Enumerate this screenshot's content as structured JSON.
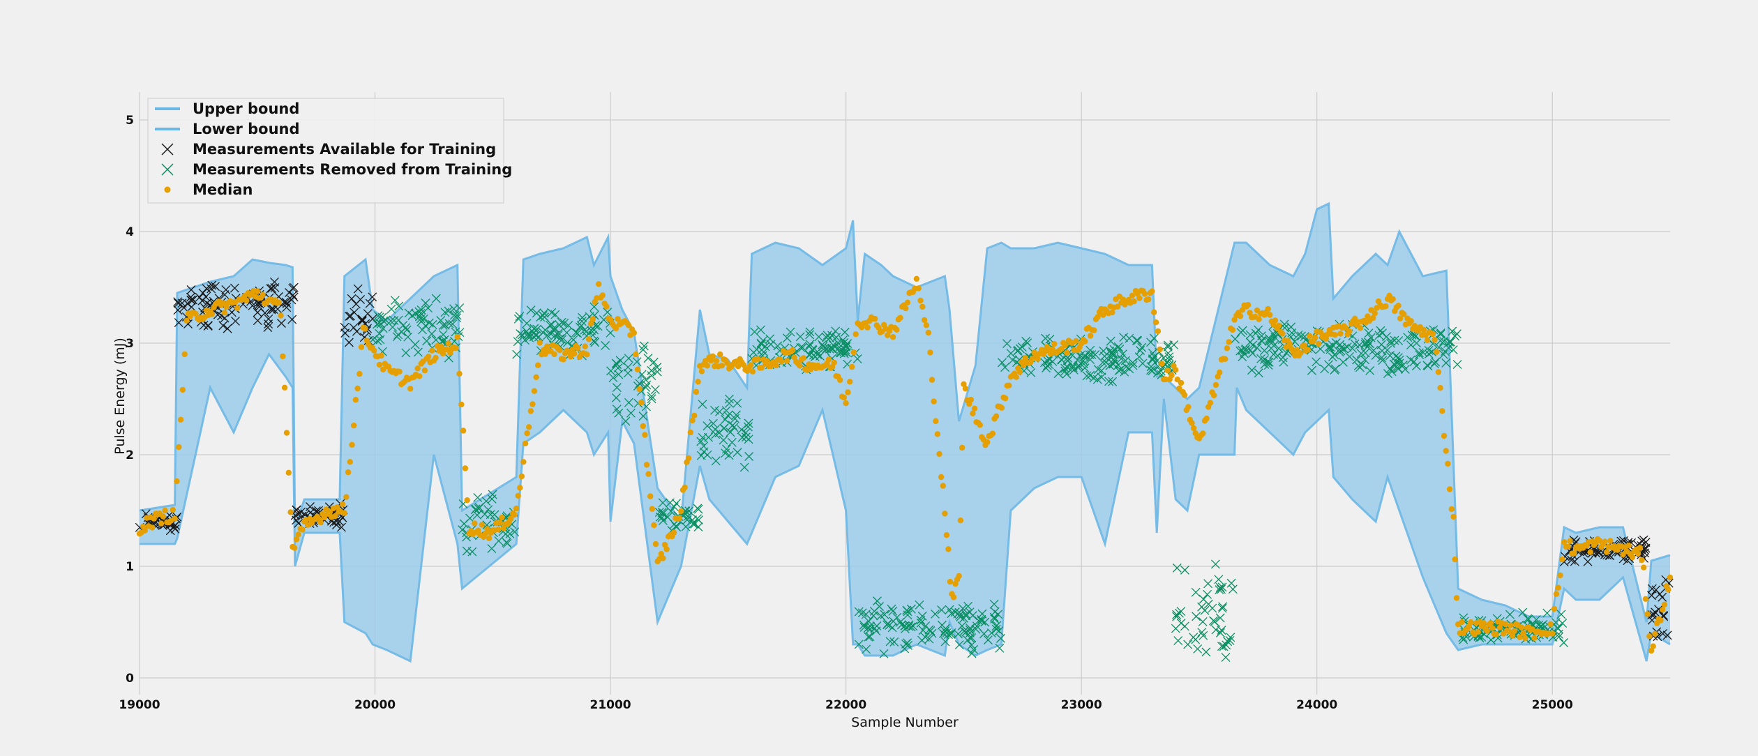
{
  "chart_data": {
    "type": "line",
    "title": "",
    "xlabel": "Sample Number",
    "ylabel": "Pulse Energy (mJ)",
    "xlim": [
      19000,
      25500
    ],
    "ylim": [
      -0.15,
      5.25
    ],
    "x_ticks": [
      19000,
      20000,
      21000,
      22000,
      23000,
      24000,
      25000
    ],
    "x_tick_labels": [
      "19000",
      "20000",
      "21000",
      "22000",
      "23000",
      "24000",
      "25000"
    ],
    "y_ticks": [
      0,
      1,
      2,
      3,
      4,
      5
    ],
    "y_tick_labels": [
      "0",
      "1",
      "2",
      "3",
      "4",
      "5"
    ],
    "grid": true,
    "legend_position": "top-left",
    "colors": {
      "background": "#f0f0f0",
      "grid": "#cbcbcb",
      "bound_line": "#6bb7e6",
      "bound_fill": "#9bcbea",
      "available": "#1a1a1a",
      "removed": "#0a8f63",
      "median": "#e69f00"
    },
    "legend": [
      {
        "label": "Upper bound",
        "marker": "line",
        "color": "#6bb7e6"
      },
      {
        "label": "Lower bound",
        "marker": "line",
        "color": "#6bb7e6"
      },
      {
        "label": "Measurements Available for Training",
        "marker": "x",
        "color": "#1a1a1a"
      },
      {
        "label": "Measurements Removed from Training",
        "marker": "x",
        "color": "#0a8f63"
      },
      {
        "label": "Median",
        "marker": "dot",
        "color": "#e69f00"
      }
    ],
    "series": [
      {
        "name": "Upper bound",
        "x": [
          19000,
          19150,
          19160,
          19300,
          19400,
          19480,
          19550,
          19620,
          19650,
          19660,
          19700,
          19800,
          19850,
          19870,
          19960,
          19990,
          20050,
          20150,
          20250,
          20350,
          20370,
          20600,
          20630,
          20700,
          20800,
          20900,
          20930,
          20990,
          21000,
          21050,
          21100,
          21200,
          21300,
          21380,
          21420,
          21500,
          21580,
          21600,
          21700,
          21800,
          21900,
          22000,
          22030,
          22050,
          22080,
          22150,
          22200,
          22300,
          22420,
          22440,
          22480,
          22550,
          22600,
          22660,
          22700,
          22800,
          22900,
          23000,
          23100,
          23200,
          23300,
          23320,
          23350,
          23400,
          23450,
          23500,
          23650,
          23660,
          23700,
          23800,
          23900,
          23950,
          24000,
          24050,
          24070,
          24150,
          24250,
          24300,
          24350,
          24400,
          24450,
          24550,
          24600,
          24700,
          24800,
          24900,
          25000,
          25050,
          25100,
          25200,
          25300,
          25400,
          25420,
          25500
        ],
        "y": [
          1.5,
          1.55,
          3.45,
          3.55,
          3.6,
          3.75,
          3.72,
          3.7,
          3.68,
          1.35,
          1.6,
          1.6,
          1.6,
          3.6,
          3.75,
          3.3,
          3.2,
          3.4,
          3.6,
          3.7,
          1.5,
          1.8,
          3.75,
          3.8,
          3.85,
          3.95,
          3.7,
          3.95,
          3.6,
          3.3,
          3.1,
          1.7,
          1.4,
          3.3,
          2.9,
          2.85,
          2.6,
          3.8,
          3.9,
          3.85,
          3.7,
          3.85,
          4.1,
          3.2,
          3.8,
          3.7,
          3.6,
          3.5,
          3.6,
          3.3,
          2.3,
          2.8,
          3.85,
          3.9,
          3.85,
          3.85,
          3.9,
          3.85,
          3.8,
          3.7,
          3.7,
          2.7,
          2.7,
          2.6,
          2.5,
          2.6,
          3.9,
          3.9,
          3.9,
          3.7,
          3.6,
          3.8,
          4.2,
          4.25,
          3.4,
          3.6,
          3.8,
          3.7,
          4.0,
          3.8,
          3.6,
          3.65,
          0.8,
          0.7,
          0.65,
          0.55,
          0.55,
          1.35,
          1.3,
          1.35,
          1.35,
          0.5,
          1.05,
          1.1
        ],
        "color": "#6bb7e6"
      },
      {
        "name": "Lower bound",
        "x": [
          19000,
          19150,
          19160,
          19300,
          19400,
          19480,
          19550,
          19620,
          19650,
          19660,
          19700,
          19800,
          19850,
          19870,
          19960,
          19990,
          20050,
          20150,
          20250,
          20350,
          20370,
          20600,
          20630,
          20700,
          20800,
          20900,
          20930,
          20990,
          21000,
          21050,
          21100,
          21200,
          21300,
          21380,
          21420,
          21500,
          21580,
          21600,
          21700,
          21800,
          21900,
          22000,
          22030,
          22050,
          22080,
          22150,
          22200,
          22300,
          22420,
          22440,
          22480,
          22550,
          22600,
          22660,
          22700,
          22800,
          22900,
          23000,
          23100,
          23200,
          23300,
          23320,
          23350,
          23400,
          23450,
          23500,
          23650,
          23660,
          23700,
          23800,
          23900,
          23950,
          24000,
          24050,
          24070,
          24150,
          24250,
          24300,
          24350,
          24400,
          24450,
          24550,
          24600,
          24700,
          24800,
          24900,
          25000,
          25050,
          25100,
          25200,
          25300,
          25400,
          25420,
          25500
        ],
        "y": [
          1.2,
          1.2,
          1.25,
          2.6,
          2.2,
          2.6,
          2.9,
          2.7,
          2.6,
          1.0,
          1.3,
          1.3,
          1.3,
          0.5,
          0.4,
          0.3,
          0.25,
          0.15,
          2.0,
          1.2,
          0.8,
          1.2,
          2.1,
          2.2,
          2.4,
          2.2,
          2.0,
          2.2,
          1.4,
          2.3,
          2.1,
          0.5,
          1.0,
          1.9,
          1.6,
          1.4,
          1.2,
          1.3,
          1.8,
          1.9,
          2.4,
          1.5,
          0.3,
          0.3,
          0.2,
          0.2,
          0.2,
          0.3,
          0.2,
          0.5,
          0.3,
          0.2,
          0.25,
          0.3,
          1.5,
          1.7,
          1.8,
          1.8,
          1.2,
          2.2,
          2.2,
          1.3,
          2.5,
          1.6,
          1.5,
          2.0,
          2.0,
          2.6,
          2.4,
          2.2,
          2.0,
          2.2,
          2.3,
          2.4,
          1.8,
          1.6,
          1.4,
          1.8,
          1.5,
          1.2,
          0.9,
          0.4,
          0.25,
          0.3,
          0.3,
          0.3,
          0.3,
          0.8,
          0.7,
          0.7,
          0.9,
          0.15,
          0.4,
          0.3
        ],
        "color": "#6bb7e6"
      },
      {
        "name": "Measurements Available for Training",
        "marker": "x",
        "color": "#1a1a1a",
        "segments": [
          {
            "x_range": [
              19000,
              19160
            ],
            "y_center": 1.4,
            "spread": 0.12
          },
          {
            "x_range": [
              19160,
              19660
            ],
            "y_center": 3.35,
            "spread": 0.25
          },
          {
            "x_range": [
              19660,
              19870
            ],
            "y_center": 1.45,
            "spread": 0.12
          },
          {
            "x_range": [
              19870,
              19990
            ],
            "y_center": 3.2,
            "spread": 0.3
          },
          {
            "x_range": [
              25050,
              25420
            ],
            "y_center": 1.15,
            "spread": 0.12
          },
          {
            "x_range": [
              25420,
              25500
            ],
            "y_center": 0.6,
            "spread": 0.35
          }
        ]
      },
      {
        "name": "Measurements Removed from Training",
        "marker": "x",
        "color": "#0a8f63",
        "segments": [
          {
            "x_range": [
              19990,
              20370
            ],
            "y_center": 3.15,
            "spread": 0.3
          },
          {
            "x_range": [
              20370,
              20600
            ],
            "y_center": 1.4,
            "spread": 0.3
          },
          {
            "x_range": [
              20600,
              21000
            ],
            "y_center": 3.1,
            "spread": 0.25
          },
          {
            "x_range": [
              21000,
              21200
            ],
            "y_center": 2.7,
            "spread": 0.45
          },
          {
            "x_range": [
              21200,
              21380
            ],
            "y_center": 1.45,
            "spread": 0.15
          },
          {
            "x_range": [
              21380,
              21600
            ],
            "y_center": 2.2,
            "spread": 0.35
          },
          {
            "x_range": [
              21600,
              22050
            ],
            "y_center": 2.95,
            "spread": 0.2
          },
          {
            "x_range": [
              22050,
              22660
            ],
            "y_center": 0.45,
            "spread": 0.25
          },
          {
            "x_range": [
              22660,
              23400
            ],
            "y_center": 2.85,
            "spread": 0.22
          },
          {
            "x_range": [
              23400,
              23650
            ],
            "y_center": 0.6,
            "spread": 0.5
          },
          {
            "x_range": [
              23650,
              24600
            ],
            "y_center": 2.95,
            "spread": 0.25
          },
          {
            "x_range": [
              24600,
              25050
            ],
            "y_center": 0.45,
            "spread": 0.15
          }
        ]
      },
      {
        "name": "Median",
        "marker": "dot",
        "color": "#e69f00",
        "x": [
          19000,
          19100,
          19150,
          19200,
          19300,
          19400,
          19500,
          19600,
          19650,
          19700,
          19800,
          19870,
          19950,
          20050,
          20150,
          20250,
          20350,
          20400,
          20500,
          20600,
          20700,
          20800,
          20900,
          20950,
          21000,
          21100,
          21200,
          21300,
          21380,
          21450,
          21550,
          21650,
          21750,
          21850,
          21950,
          22000,
          22050,
          22100,
          22200,
          22300,
          22350,
          22420,
          22450,
          22480,
          22500,
          22600,
          22700,
          22800,
          22900,
          23000,
          23100,
          23200,
          23300,
          23350,
          23400,
          23500,
          23650,
          23700,
          23800,
          23900,
          24000,
          24100,
          24200,
          24300,
          24400,
          24500,
          24580,
          24600,
          24700,
          24800,
          24900,
          25000,
          25050,
          25100,
          25200,
          25300,
          25380,
          25420,
          25500
        ],
        "y": [
          1.35,
          1.45,
          1.45,
          3.2,
          3.3,
          3.35,
          3.45,
          3.3,
          1.15,
          1.35,
          1.5,
          1.5,
          3.1,
          2.75,
          2.65,
          2.9,
          3.0,
          1.35,
          1.3,
          1.5,
          2.95,
          2.9,
          2.95,
          3.5,
          3.2,
          3.1,
          1.0,
          1.5,
          2.8,
          2.85,
          2.8,
          2.8,
          2.9,
          2.8,
          2.8,
          2.45,
          3.2,
          3.2,
          3.1,
          3.55,
          3.05,
          1.5,
          0.7,
          0.9,
          2.6,
          2.1,
          2.7,
          2.9,
          2.95,
          3.0,
          3.3,
          3.4,
          3.45,
          2.7,
          2.75,
          2.1,
          3.2,
          3.3,
          3.25,
          2.9,
          3.05,
          3.1,
          3.2,
          3.4,
          3.15,
          3.05,
          1.4,
          0.45,
          0.45,
          0.45,
          0.4,
          0.45,
          1.2,
          1.15,
          1.2,
          1.15,
          1.1,
          0.25,
          0.9
        ]
      }
    ]
  }
}
